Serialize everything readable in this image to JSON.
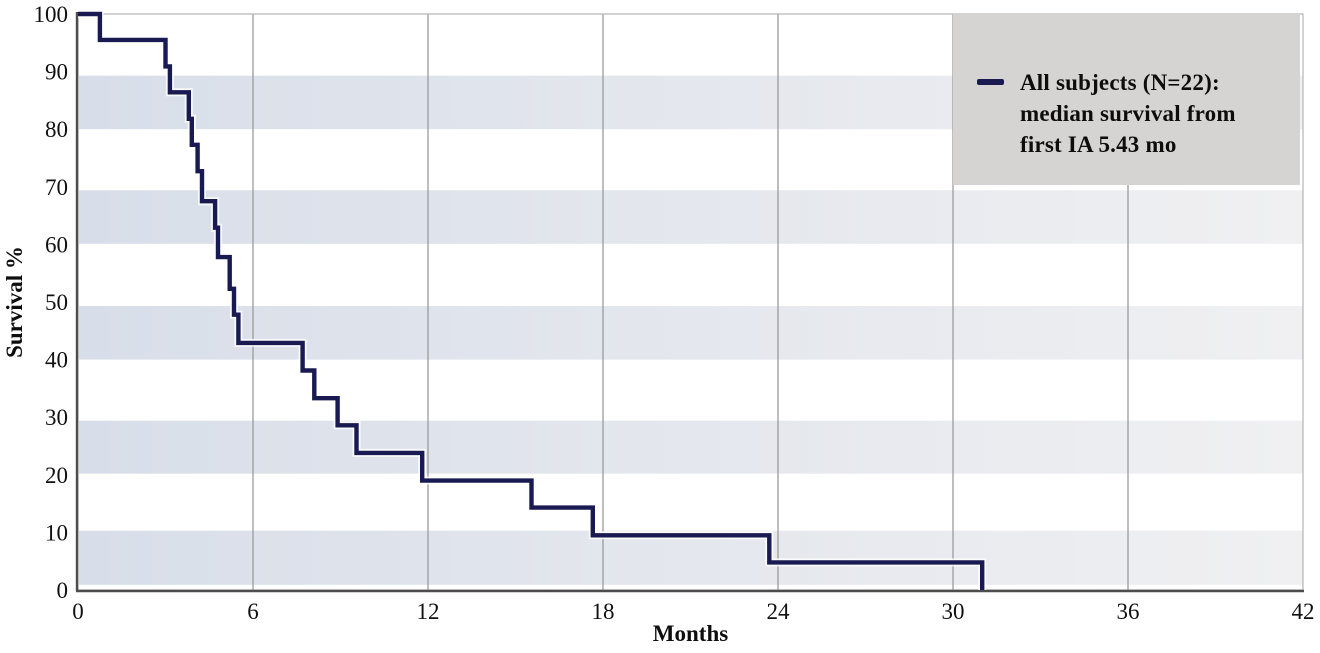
{
  "figure": {
    "x_axis_label": "Months",
    "y_axis_label": "Survival %"
  },
  "legend": {
    "lines": [
      "All subjects (N=22):",
      "median survival from",
      "first IA 5.43 mo"
    ],
    "marker": "line-dash",
    "background": "#d5d4d2"
  },
  "colors": {
    "curve": "#1a1a52",
    "curve_halo": "#ffffff",
    "band_left": "#d8dee9",
    "band_right": "#f0f0f2",
    "gridline": "#9b9b9b",
    "spine": "#4d4d4d",
    "plot_border": "#b5b5b5",
    "tick_text": "#111111",
    "plot_background": "#ffffff"
  },
  "chart_data": {
    "type": "line",
    "subtype": "kaplan-meier-step",
    "title": "",
    "xlabel": "Months",
    "ylabel": "Survival %",
    "xlim": [
      0,
      42
    ],
    "ylim": [
      0,
      100
    ],
    "x_ticks": [
      0,
      6,
      12,
      18,
      24,
      30,
      36,
      42
    ],
    "y_ticks": [
      0,
      10,
      20,
      30,
      40,
      50,
      60,
      70,
      80,
      90,
      100
    ],
    "grid": "vertical-gridlines-at-x-ticks",
    "legend_position": "top-right",
    "series": [
      {
        "name": "All subjects (N=22): median survival from first IA 5.43 mo",
        "n_subjects": 22,
        "median_survival_months": 5.43,
        "color": "#1a1a52",
        "steps_time_survival": [
          [
            0.0,
            100.0
          ],
          [
            0.75,
            95.5
          ],
          [
            3.0,
            90.9
          ],
          [
            3.15,
            86.4
          ],
          [
            3.8,
            81.8
          ],
          [
            3.9,
            77.3
          ],
          [
            4.1,
            72.7
          ],
          [
            4.25,
            67.5
          ],
          [
            4.7,
            62.9
          ],
          [
            4.8,
            57.8
          ],
          [
            5.2,
            52.3
          ],
          [
            5.35,
            47.8
          ],
          [
            5.5,
            42.9
          ],
          [
            7.7,
            38.1
          ],
          [
            8.1,
            33.3
          ],
          [
            8.9,
            28.6
          ],
          [
            9.55,
            23.8
          ],
          [
            11.8,
            19.0
          ],
          [
            15.55,
            14.3
          ],
          [
            17.65,
            9.5
          ],
          [
            23.7,
            4.8
          ],
          [
            31.0,
            0.0
          ]
        ]
      }
    ]
  }
}
